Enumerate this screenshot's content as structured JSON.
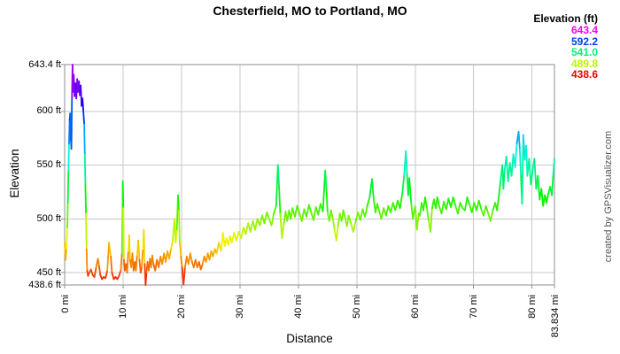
{
  "title": "Chesterfield, MO to Portland, MO",
  "watermark": "created by GPSVisualizer.com",
  "chart_data": {
    "type": "line",
    "title": "Chesterfield, MO to Portland, MO",
    "xlabel": "Distance",
    "ylabel": "Elevation",
    "x_unit": "mi",
    "y_unit": "ft",
    "xlim": [
      0,
      83.834
    ],
    "ylim": [
      438.6,
      643.4
    ],
    "grid": true,
    "x_gridlines": [
      10,
      20,
      30,
      40,
      50,
      60,
      70,
      80
    ],
    "y_gridlines": [
      450,
      500,
      550,
      600
    ],
    "x_ticks": [
      {
        "value": 0,
        "label": "0 mi"
      },
      {
        "value": 10,
        "label": "10 mi"
      },
      {
        "value": 20,
        "label": "20 mi"
      },
      {
        "value": 30,
        "label": "30 mi"
      },
      {
        "value": 40,
        "label": "40 mi"
      },
      {
        "value": 50,
        "label": "50 mi"
      },
      {
        "value": 60,
        "label": "60 mi"
      },
      {
        "value": 70,
        "label": "70 mi"
      },
      {
        "value": 80,
        "label": "80 mi"
      },
      {
        "value": 83.834,
        "label": "83.834 mi"
      }
    ],
    "y_ticks": [
      {
        "value": 643.4,
        "label": "643.4 ft"
      },
      {
        "value": 600,
        "label": "600 ft"
      },
      {
        "value": 550,
        "label": "550 ft"
      },
      {
        "value": 500,
        "label": "500 ft"
      },
      {
        "value": 450,
        "label": "450 ft"
      },
      {
        "value": 438.6,
        "label": "438.6 ft"
      }
    ],
    "legend": {
      "title": "Elevation (ft)",
      "position": "top-right",
      "entries": [
        {
          "label": "643.4",
          "value": 643.4
        },
        {
          "label": "592.2",
          "value": 592.2
        },
        {
          "label": "541.0",
          "value": 541.0
        },
        {
          "label": "489.8",
          "value": 489.8
        },
        {
          "label": "438.6",
          "value": 438.6
        }
      ]
    },
    "color_scale": {
      "min": 438.6,
      "max": 643.4,
      "hue_start": 0,
      "hue_end": 300,
      "description": "rainbow: red=low, magenta=high"
    },
    "series": [
      {
        "name": "Elevation profile",
        "points": [
          [
            0,
            478
          ],
          [
            0.15,
            462
          ],
          [
            0.3,
            472
          ],
          [
            0.45,
            492
          ],
          [
            0.55,
            515
          ],
          [
            0.65,
            545
          ],
          [
            0.75,
            570
          ],
          [
            0.85,
            592
          ],
          [
            0.95,
            598
          ],
          [
            1.05,
            572
          ],
          [
            1.15,
            565
          ],
          [
            1.25,
            612
          ],
          [
            1.35,
            643.4
          ],
          [
            1.45,
            618
          ],
          [
            1.55,
            634
          ],
          [
            1.7,
            614
          ],
          [
            1.85,
            626
          ],
          [
            2,
            612
          ],
          [
            2.15,
            630
          ],
          [
            2.3,
            618
          ],
          [
            2.45,
            628
          ],
          [
            2.6,
            615
          ],
          [
            2.75,
            624
          ],
          [
            2.9,
            605
          ],
          [
            3.05,
            612
          ],
          [
            3.2,
            600
          ],
          [
            3.35,
            588
          ],
          [
            3.45,
            560
          ],
          [
            3.55,
            532
          ],
          [
            3.65,
            505
          ],
          [
            3.75,
            472
          ],
          [
            3.85,
            452
          ],
          [
            4,
            447
          ],
          [
            4.2,
            450
          ],
          [
            4.5,
            453
          ],
          [
            4.8,
            448
          ],
          [
            5.1,
            446
          ],
          [
            5.4,
            455
          ],
          [
            5.7,
            463
          ],
          [
            5.9,
            456
          ],
          [
            6.1,
            448
          ],
          [
            6.4,
            444
          ],
          [
            6.7,
            446
          ],
          [
            7,
            445
          ],
          [
            7.3,
            452
          ],
          [
            7.6,
            478
          ],
          [
            7.9,
            465
          ],
          [
            8.1,
            450
          ],
          [
            8.4,
            444
          ],
          [
            8.7,
            446
          ],
          [
            9,
            444
          ],
          [
            9.3,
            447
          ],
          [
            9.6,
            452
          ],
          [
            9.8,
            468
          ],
          [
            9.95,
            535
          ],
          [
            10.05,
            510
          ],
          [
            10.15,
            462
          ],
          [
            10.3,
            452
          ],
          [
            10.5,
            458
          ],
          [
            10.7,
            450
          ],
          [
            10.9,
            470
          ],
          [
            11.05,
            485
          ],
          [
            11.2,
            462
          ],
          [
            11.4,
            455
          ],
          [
            11.6,
            468
          ],
          [
            11.8,
            452
          ],
          [
            12,
            460
          ],
          [
            12.2,
            452
          ],
          [
            12.4,
            466
          ],
          [
            12.6,
            480
          ],
          [
            12.8,
            462
          ],
          [
            13,
            450
          ],
          [
            13.2,
            455
          ],
          [
            13.4,
            472
          ],
          [
            13.55,
            490
          ],
          [
            13.7,
            458
          ],
          [
            13.85,
            438.6
          ],
          [
            14,
            450
          ],
          [
            14.2,
            460
          ],
          [
            14.4,
            452
          ],
          [
            14.6,
            463
          ],
          [
            14.8,
            455
          ],
          [
            15,
            466
          ],
          [
            15.2,
            458
          ],
          [
            15.5,
            452
          ],
          [
            15.8,
            462
          ],
          [
            16.1,
            455
          ],
          [
            16.4,
            465
          ],
          [
            16.7,
            458
          ],
          [
            17,
            468
          ],
          [
            17.3,
            460
          ],
          [
            17.6,
            470
          ],
          [
            17.9,
            463
          ],
          [
            18.2,
            472
          ],
          [
            18.5,
            480
          ],
          [
            18.8,
            500
          ],
          [
            19,
            478
          ],
          [
            19.2,
            490
          ],
          [
            19.4,
            522
          ],
          [
            19.55,
            508
          ],
          [
            19.7,
            478
          ],
          [
            19.9,
            465
          ],
          [
            20.1,
            455
          ],
          [
            20.35,
            439
          ],
          [
            20.6,
            455
          ],
          [
            20.9,
            465
          ],
          [
            21.2,
            458
          ],
          [
            21.5,
            468
          ],
          [
            21.8,
            460
          ],
          [
            22.1,
            455
          ],
          [
            22.4,
            462
          ],
          [
            22.7,
            455
          ],
          [
            23,
            460
          ],
          [
            23.3,
            453
          ],
          [
            23.6,
            458
          ],
          [
            23.9,
            465
          ],
          [
            24.2,
            460
          ],
          [
            24.5,
            468
          ],
          [
            24.8,
            462
          ],
          [
            25.1,
            470
          ],
          [
            25.4,
            465
          ],
          [
            25.7,
            472
          ],
          [
            26,
            468
          ],
          [
            26.4,
            478
          ],
          [
            26.8,
            470
          ],
          [
            27.1,
            487
          ],
          [
            27.4,
            475
          ],
          [
            27.7,
            482
          ],
          [
            28,
            476
          ],
          [
            28.3,
            484
          ],
          [
            28.6,
            478
          ],
          [
            29,
            487
          ],
          [
            29.4,
            480
          ],
          [
            29.8,
            488
          ],
          [
            30.2,
            482
          ],
          [
            30.6,
            492
          ],
          [
            31,
            486
          ],
          [
            31.4,
            496
          ],
          [
            31.8,
            488
          ],
          [
            32.2,
            498
          ],
          [
            32.6,
            490
          ],
          [
            33,
            500
          ],
          [
            33.4,
            494
          ],
          [
            33.8,
            503
          ],
          [
            34.2,
            496
          ],
          [
            34.6,
            506
          ],
          [
            35,
            500
          ],
          [
            35.4,
            494
          ],
          [
            35.8,
            505
          ],
          [
            36.2,
            512
          ],
          [
            36.5,
            550
          ],
          [
            36.7,
            530
          ],
          [
            36.9,
            505
          ],
          [
            37.2,
            482
          ],
          [
            37.5,
            495
          ],
          [
            37.8,
            507
          ],
          [
            38.1,
            498
          ],
          [
            38.4,
            508
          ],
          [
            38.7,
            500
          ],
          [
            39,
            510
          ],
          [
            39.4,
            502
          ],
          [
            39.8,
            512
          ],
          [
            40.2,
            505
          ],
          [
            40.6,
            498
          ],
          [
            41,
            509
          ],
          [
            41.4,
            502
          ],
          [
            41.8,
            513
          ],
          [
            42.2,
            506
          ],
          [
            42.6,
            499
          ],
          [
            43,
            511
          ],
          [
            43.4,
            504
          ],
          [
            43.8,
            514
          ],
          [
            44.2,
            507
          ],
          [
            44.6,
            545
          ],
          [
            44.8,
            528
          ],
          [
            45,
            506
          ],
          [
            45.3,
            498
          ],
          [
            45.6,
            508
          ],
          [
            45.9,
            500
          ],
          [
            46.2,
            490
          ],
          [
            46.5,
            480
          ],
          [
            46.8,
            494
          ],
          [
            47.1,
            505
          ],
          [
            47.4,
            498
          ],
          [
            47.7,
            508
          ],
          [
            48,
            501
          ],
          [
            48.3,
            493
          ],
          [
            48.6,
            503
          ],
          [
            49,
            496
          ],
          [
            49.4,
            488
          ],
          [
            49.8,
            498
          ],
          [
            50.2,
            506
          ],
          [
            50.6,
            499
          ],
          [
            51,
            509
          ],
          [
            51.4,
            502
          ],
          [
            51.8,
            512
          ],
          [
            52.2,
            520
          ],
          [
            52.6,
            537
          ],
          [
            52.9,
            518
          ],
          [
            53.2,
            506
          ],
          [
            53.5,
            514
          ],
          [
            53.8,
            508
          ],
          [
            54.2,
            500
          ],
          [
            54.6,
            510
          ],
          [
            55,
            503
          ],
          [
            55.4,
            512
          ],
          [
            55.8,
            506
          ],
          [
            56.2,
            515
          ],
          [
            56.6,
            508
          ],
          [
            57,
            517
          ],
          [
            57.4,
            510
          ],
          [
            57.8,
            524
          ],
          [
            58.1,
            540
          ],
          [
            58.4,
            563
          ],
          [
            58.6,
            542
          ],
          [
            58.8,
            522
          ],
          [
            59,
            538
          ],
          [
            59.3,
            515
          ],
          [
            59.6,
            500
          ],
          [
            60,
            512
          ],
          [
            60.3,
            490
          ],
          [
            60.6,
            505
          ],
          [
            60.8,
            503
          ],
          [
            61.1,
            515
          ],
          [
            61.4,
            508
          ],
          [
            61.7,
            520
          ],
          [
            62,
            510
          ],
          [
            62.3,
            498
          ],
          [
            62.6,
            488
          ],
          [
            62.9,
            510
          ],
          [
            63.2,
            518
          ],
          [
            63.5,
            510
          ],
          [
            63.8,
            520
          ],
          [
            64.1,
            512
          ],
          [
            64.5,
            505
          ],
          [
            64.9,
            516
          ],
          [
            65.3,
            509
          ],
          [
            65.7,
            519
          ],
          [
            66.1,
            511
          ],
          [
            66.5,
            520
          ],
          [
            66.9,
            512
          ],
          [
            67.3,
            505
          ],
          [
            67.7,
            515
          ],
          [
            68.1,
            510
          ],
          [
            68.5,
            508
          ],
          [
            68.9,
            520
          ],
          [
            69.3,
            513
          ],
          [
            69.7,
            506
          ],
          [
            70.1,
            515
          ],
          [
            70.5,
            508
          ],
          [
            70.9,
            517
          ],
          [
            71.3,
            509
          ],
          [
            71.7,
            503
          ],
          [
            72.1,
            512
          ],
          [
            72.5,
            505
          ],
          [
            72.9,
            498
          ],
          [
            73.3,
            508
          ],
          [
            73.7,
            515
          ],
          [
            74,
            508
          ],
          [
            74.3,
            520
          ],
          [
            74.6,
            535
          ],
          [
            74.9,
            550
          ],
          [
            75.1,
            528
          ],
          [
            75.3,
            545
          ],
          [
            75.6,
            558
          ],
          [
            75.9,
            535
          ],
          [
            76.2,
            552
          ],
          [
            76.5,
            540
          ],
          [
            76.8,
            560
          ],
          [
            77.1,
            548
          ],
          [
            77.4,
            570
          ],
          [
            77.7,
            581
          ],
          [
            77.9,
            565
          ],
          [
            78.1,
            540
          ],
          [
            78.3,
            514
          ],
          [
            78.5,
            578
          ],
          [
            78.75,
            555
          ],
          [
            79,
            568
          ],
          [
            79.2,
            540
          ],
          [
            79.5,
            556
          ],
          [
            79.8,
            532
          ],
          [
            80.1,
            545
          ],
          [
            80.4,
            556
          ],
          [
            80.7,
            528
          ],
          [
            81,
            540
          ],
          [
            81.3,
            518
          ],
          [
            81.6,
            528
          ],
          [
            81.9,
            512
          ],
          [
            82.2,
            522
          ],
          [
            82.5,
            515
          ],
          [
            82.8,
            524
          ],
          [
            83.1,
            530
          ],
          [
            83.4,
            522
          ],
          [
            83.6,
            540
          ],
          [
            83.834,
            556
          ]
        ]
      }
    ]
  }
}
